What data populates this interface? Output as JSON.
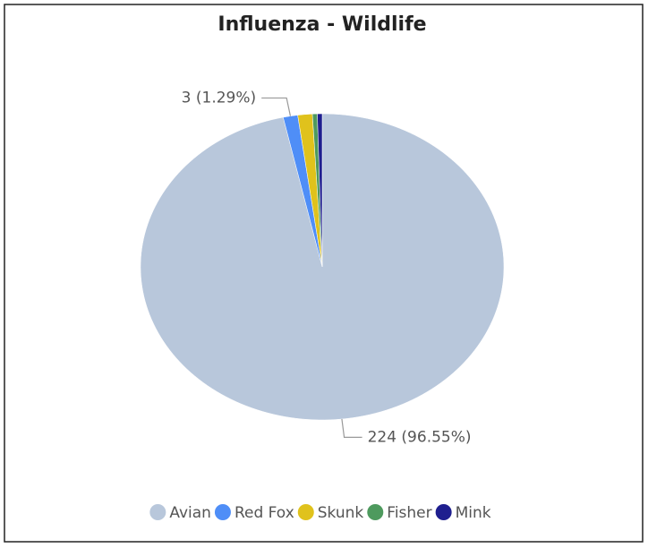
{
  "chart_data": {
    "type": "pie",
    "title": "Influenza - Wildlife",
    "categories": [
      "Avian",
      "Red Fox",
      "Skunk",
      "Fisher",
      "Mink"
    ],
    "values": [
      224,
      3,
      3,
      1,
      1
    ],
    "value_labels": [
      "224 (96.55%)",
      "3 (1.29%)",
      null,
      null,
      null
    ],
    "colors": [
      "#b8c7db",
      "#4f8ef7",
      "#e0c21c",
      "#4e9a5e",
      "#1f1f8f"
    ],
    "legend": "bottom"
  }
}
